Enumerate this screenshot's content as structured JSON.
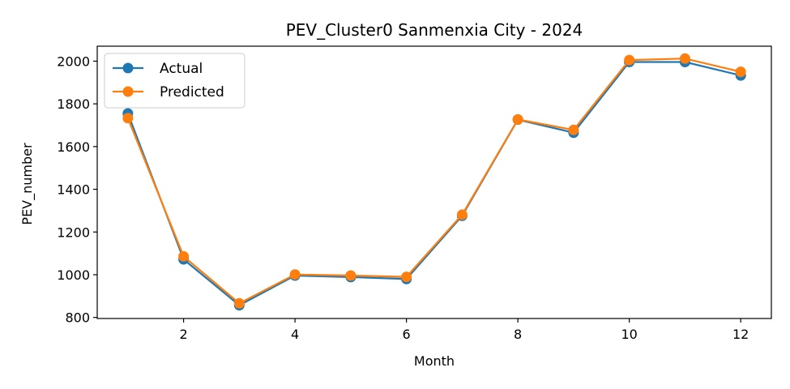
{
  "chart_data": {
    "type": "line",
    "title": "PEV_Cluster0 Sanmenxia City - 2024",
    "xlabel": "Month",
    "ylabel": "PEV_number",
    "xlim": [
      0.45,
      12.55
    ],
    "ylim": [
      795,
      2070
    ],
    "xticks": [
      2,
      4,
      6,
      8,
      10,
      12
    ],
    "yticks": [
      800,
      1000,
      1200,
      1400,
      1600,
      1800,
      2000
    ],
    "x": [
      1,
      2,
      3,
      4,
      5,
      6,
      7,
      8,
      9,
      10,
      11,
      12
    ],
    "series": [
      {
        "name": "Actual",
        "color": "#1f77b4",
        "values": [
          1755,
          1072,
          857,
          996,
          989,
          980,
          1276,
          1726,
          1665,
          1996,
          1996,
          1933
        ]
      },
      {
        "name": "Predicted",
        "color": "#ff7f0e",
        "values": [
          1733,
          1086,
          866,
          1001,
          996,
          990,
          1281,
          1727,
          1678,
          2005,
          2012,
          1950
        ]
      }
    ],
    "legend": "top-left",
    "grid": false
  }
}
